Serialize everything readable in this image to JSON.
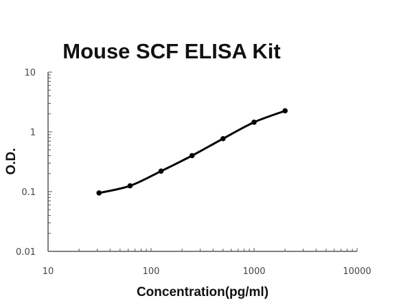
{
  "chart_data": {
    "type": "line",
    "title": "Mouse SCF ELISA Kit",
    "xlabel": "Concentration(pg/ml)",
    "ylabel": "O.D.",
    "xscale": "log",
    "yscale": "log",
    "xlim": [
      10,
      10000
    ],
    "ylim": [
      0.01,
      10
    ],
    "xticks": [
      "10",
      "100",
      "1000",
      "10000"
    ],
    "yticks": [
      "0.01",
      "0.1",
      "1",
      "10"
    ],
    "grid": false,
    "x": [
      31.25,
      62.5,
      125,
      250,
      500,
      1000,
      2000
    ],
    "y": [
      0.095,
      0.125,
      0.22,
      0.4,
      0.77,
      1.45,
      2.25
    ],
    "line_color": "#000000",
    "marker": "circle"
  }
}
